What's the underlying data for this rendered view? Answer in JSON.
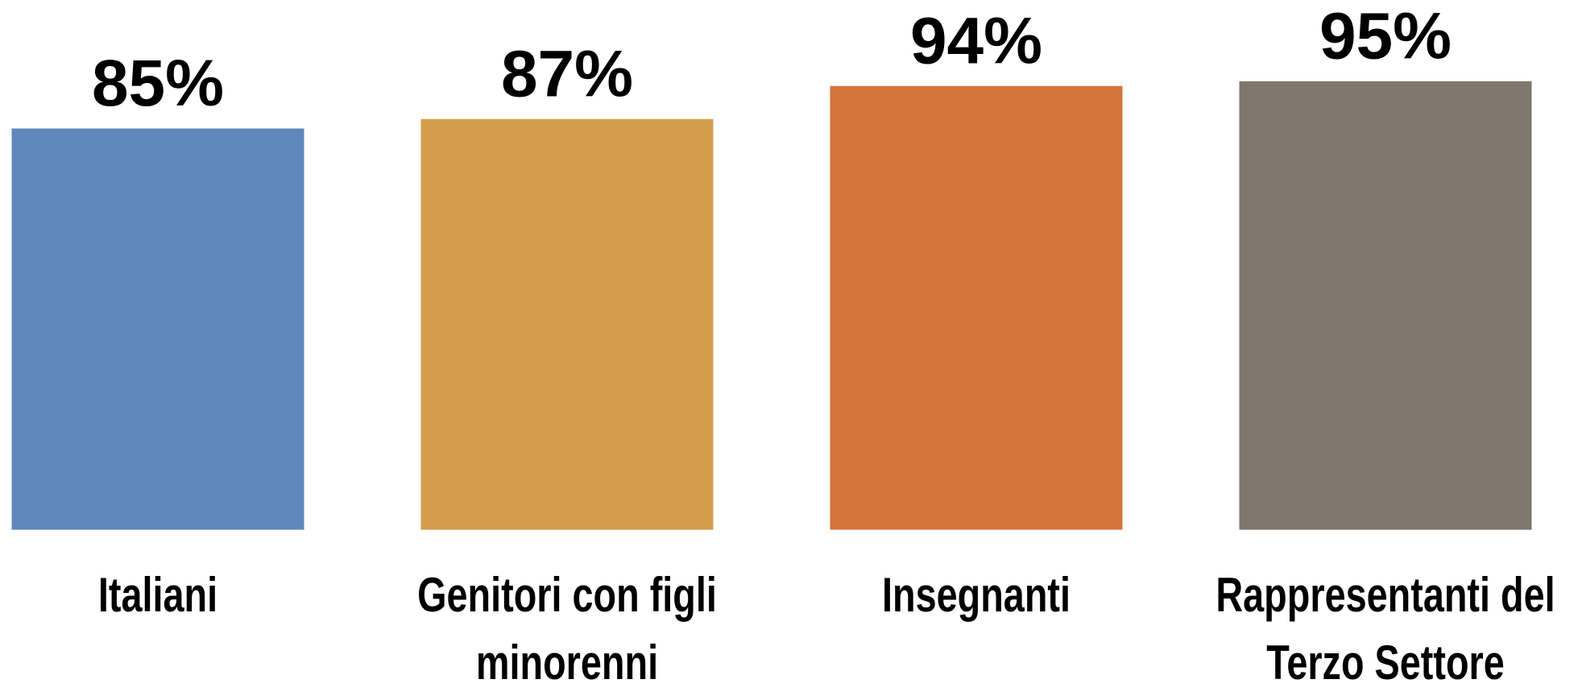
{
  "chart_data": {
    "type": "bar",
    "categories": [
      "Italiani",
      "Genitori con figli minorenni",
      "Insegnanti",
      "Rappresentanti del Terzo Settore"
    ],
    "values": [
      85,
      87,
      94,
      95
    ],
    "value_labels": [
      "85%",
      "87%",
      "94%",
      "95%"
    ],
    "colors": [
      "#5f87bb",
      "#d39d4c",
      "#d4753a",
      "#7f776b"
    ],
    "ylim": [
      0,
      100
    ]
  }
}
